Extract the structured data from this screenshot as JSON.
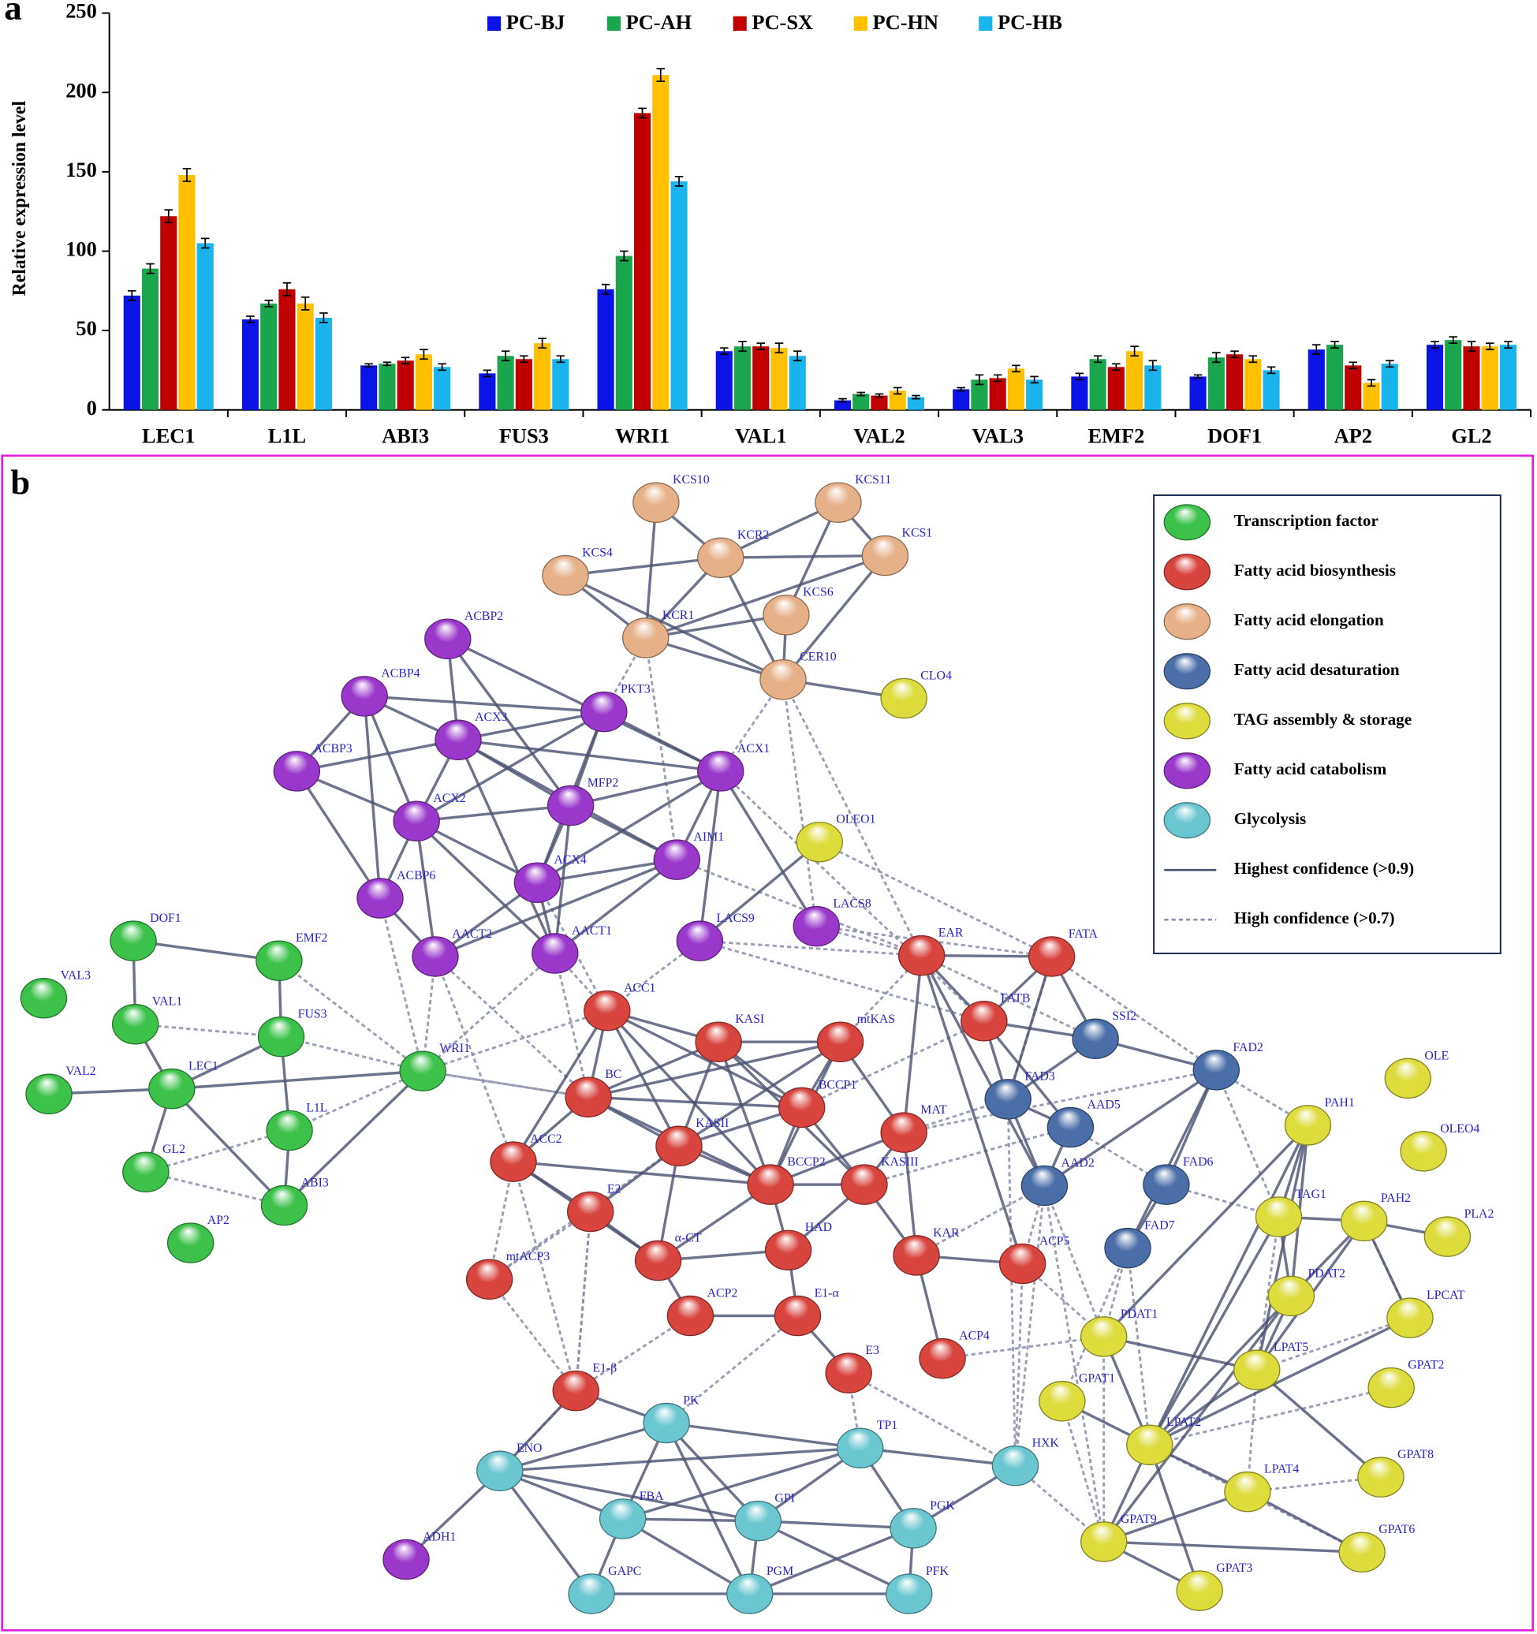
{
  "chart_data": [
    {
      "type": "bar",
      "panel_label": "a",
      "ylabel": "Relative expression level",
      "categories": [
        "LEC1",
        "L1L",
        "ABI3",
        "FUS3",
        "WRI1",
        "VAL1",
        "VAL2",
        "VAL3",
        "EMF2",
        "DOF1",
        "AP2",
        "GL2"
      ],
      "series": [
        {
          "name": "PC-BJ",
          "color": "#0a14e6",
          "values": [
            72,
            57,
            28,
            23,
            76,
            37,
            6,
            13,
            21,
            21,
            38,
            41
          ],
          "errors": [
            3,
            2,
            1,
            2,
            3,
            2,
            1,
            1,
            2,
            1,
            3,
            2
          ]
        },
        {
          "name": "PC-AH",
          "color": "#19a64c",
          "values": [
            89,
            67,
            29,
            34,
            97,
            40,
            10,
            19,
            32,
            33,
            41,
            44
          ],
          "errors": [
            3,
            2,
            1,
            3,
            3,
            3,
            1,
            3,
            2,
            3,
            2,
            2
          ]
        },
        {
          "name": "PC-SX",
          "color": "#c00000",
          "values": [
            122,
            76,
            31,
            32,
            187,
            40,
            9,
            20,
            27,
            35,
            28,
            40
          ],
          "errors": [
            4,
            4,
            2,
            2,
            3,
            2,
            1,
            2,
            2,
            2,
            2,
            3
          ]
        },
        {
          "name": "PC-HN",
          "color": "#ffc000",
          "values": [
            148,
            67,
            35,
            42,
            211,
            39,
            12,
            26,
            37,
            32,
            17,
            40
          ],
          "errors": [
            4,
            4,
            3,
            3,
            4,
            3,
            2,
            2,
            3,
            2,
            2,
            2
          ]
        },
        {
          "name": "PC-HB",
          "color": "#1ab4ec",
          "values": [
            105,
            58,
            27,
            32,
            144,
            34,
            8,
            19,
            28,
            25,
            29,
            41
          ],
          "errors": [
            3,
            3,
            2,
            2,
            3,
            3,
            1,
            2,
            3,
            2,
            2,
            2
          ]
        }
      ],
      "ylim": [
        0,
        250
      ],
      "yticks": [
        0,
        50,
        100,
        150,
        200,
        250
      ],
      "legend": "top"
    },
    {
      "type": "network",
      "panel_label": "b",
      "groups": [
        {
          "name": "Transcription factor",
          "color": "#3cc24a"
        },
        {
          "name": "Fatty acid biosynthesis",
          "color": "#d8443e"
        },
        {
          "name": "Fatty acid elongation",
          "color": "#e6b088"
        },
        {
          "name": "Fatty acid desaturation",
          "color": "#4a6ea8"
        },
        {
          "name": "TAG assembly & storage",
          "color": "#dcdc3c"
        },
        {
          "name": "Fatty acid catabolism",
          "color": "#9a38cc"
        },
        {
          "name": "Glycolysis",
          "color": "#6ac6d0"
        }
      ],
      "edge_types": [
        {
          "name": "Highest confidence (>0.9)"
        },
        {
          "name": "High confidence (>0.7)"
        }
      ],
      "nodes": [
        {
          "label": "KCS10",
          "group": 2
        },
        {
          "label": "KCS11",
          "group": 2
        },
        {
          "label": "KCR2",
          "group": 2
        },
        {
          "label": "KCS1",
          "group": 2
        },
        {
          "label": "KCS4",
          "group": 2
        },
        {
          "label": "KCS6",
          "group": 2
        },
        {
          "label": "KCR1",
          "group": 2
        },
        {
          "label": "CER10",
          "group": 2
        },
        {
          "label": "CLO4",
          "group": 4
        },
        {
          "label": "OLEO1",
          "group": 4
        },
        {
          "label": "OLE",
          "group": 4
        },
        {
          "label": "PAH1",
          "group": 4
        },
        {
          "label": "OLEO4",
          "group": 4
        },
        {
          "label": "TAG1",
          "group": 4
        },
        {
          "label": "PAH2",
          "group": 4
        },
        {
          "label": "PLA2",
          "group": 4
        },
        {
          "label": "PDAT2",
          "group": 4
        },
        {
          "label": "LPCAT",
          "group": 4
        },
        {
          "label": "PDAT1",
          "group": 4
        },
        {
          "label": "LPAT5",
          "group": 4
        },
        {
          "label": "GPAT2",
          "group": 4
        },
        {
          "label": "GPAT1",
          "group": 4
        },
        {
          "label": "LPAT2",
          "group": 4
        },
        {
          "label": "GPAT8",
          "group": 4
        },
        {
          "label": "LPAT4",
          "group": 4
        },
        {
          "label": "GPAT9",
          "group": 4
        },
        {
          "label": "GPAT6",
          "group": 4
        },
        {
          "label": "GPAT3",
          "group": 4
        },
        {
          "label": "ACBP2",
          "group": 5
        },
        {
          "label": "ACBP4",
          "group": 5
        },
        {
          "label": "ACX3",
          "group": 5
        },
        {
          "label": "PKT3",
          "group": 5
        },
        {
          "label": "ACBP3",
          "group": 5
        },
        {
          "label": "ACX1",
          "group": 5
        },
        {
          "label": "MFP2",
          "group": 5
        },
        {
          "label": "ACX2",
          "group": 5
        },
        {
          "label": "AIM1",
          "group": 5
        },
        {
          "label": "ACX4",
          "group": 5
        },
        {
          "label": "ACBP6",
          "group": 5
        },
        {
          "label": "LACS9",
          "group": 5
        },
        {
          "label": "LACS8",
          "group": 5
        },
        {
          "label": "AACT2",
          "group": 5
        },
        {
          "label": "AACT1",
          "group": 5
        },
        {
          "label": "ADH1",
          "group": 5
        },
        {
          "label": "DOF1",
          "group": 0
        },
        {
          "label": "EMF2",
          "group": 0
        },
        {
          "label": "VAL3",
          "group": 0
        },
        {
          "label": "VAL1",
          "group": 0
        },
        {
          "label": "FUS3",
          "group": 0
        },
        {
          "label": "VAL2",
          "group": 0
        },
        {
          "label": "LEC1",
          "group": 0
        },
        {
          "label": "WRI1",
          "group": 0
        },
        {
          "label": "L1L",
          "group": 0
        },
        {
          "label": "GL2",
          "group": 0
        },
        {
          "label": "ABI3",
          "group": 0
        },
        {
          "label": "AP2",
          "group": 0
        },
        {
          "label": "EAR",
          "group": 1
        },
        {
          "label": "FATA",
          "group": 1
        },
        {
          "label": "ACC1",
          "group": 1
        },
        {
          "label": "FATB",
          "group": 1
        },
        {
          "label": "KASI",
          "group": 1
        },
        {
          "label": "mtKAS",
          "group": 1
        },
        {
          "label": "BC",
          "group": 1
        },
        {
          "label": "BCCP1",
          "group": 1
        },
        {
          "label": "MAT",
          "group": 1
        },
        {
          "label": "KASII",
          "group": 1
        },
        {
          "label": "ACC2",
          "group": 1
        },
        {
          "label": "BCCP2",
          "group": 1
        },
        {
          "label": "KASIII",
          "group": 1
        },
        {
          "label": "E2",
          "group": 1
        },
        {
          "label": "HAD",
          "group": 1
        },
        {
          "label": "KAR",
          "group": 1
        },
        {
          "label": "α-CT",
          "group": 1
        },
        {
          "label": "ACP5",
          "group": 1
        },
        {
          "label": "mtACP3",
          "group": 1
        },
        {
          "label": "ACP2",
          "group": 1
        },
        {
          "label": "E1-α",
          "group": 1
        },
        {
          "label": "ACP4",
          "group": 1
        },
        {
          "label": "E3",
          "group": 1
        },
        {
          "label": "E1-β",
          "group": 1
        },
        {
          "label": "SSI2",
          "group": 3
        },
        {
          "label": "FAD2",
          "group": 3
        },
        {
          "label": "FAD3",
          "group": 3
        },
        {
          "label": "AAD5",
          "group": 3
        },
        {
          "label": "AAD2",
          "group": 3
        },
        {
          "label": "FAD6",
          "group": 3
        },
        {
          "label": "FAD7",
          "group": 3
        },
        {
          "label": "PK",
          "group": 6
        },
        {
          "label": "TP1",
          "group": 6
        },
        {
          "label": "ENO",
          "group": 6
        },
        {
          "label": "HXK",
          "group": 6
        },
        {
          "label": "FBA",
          "group": 6
        },
        {
          "label": "GPI",
          "group": 6
        },
        {
          "label": "PGK",
          "group": 6
        },
        {
          "label": "GAPC",
          "group": 6
        },
        {
          "label": "PGM",
          "group": 6
        },
        {
          "label": "PFK",
          "group": 6
        }
      ]
    }
  ]
}
